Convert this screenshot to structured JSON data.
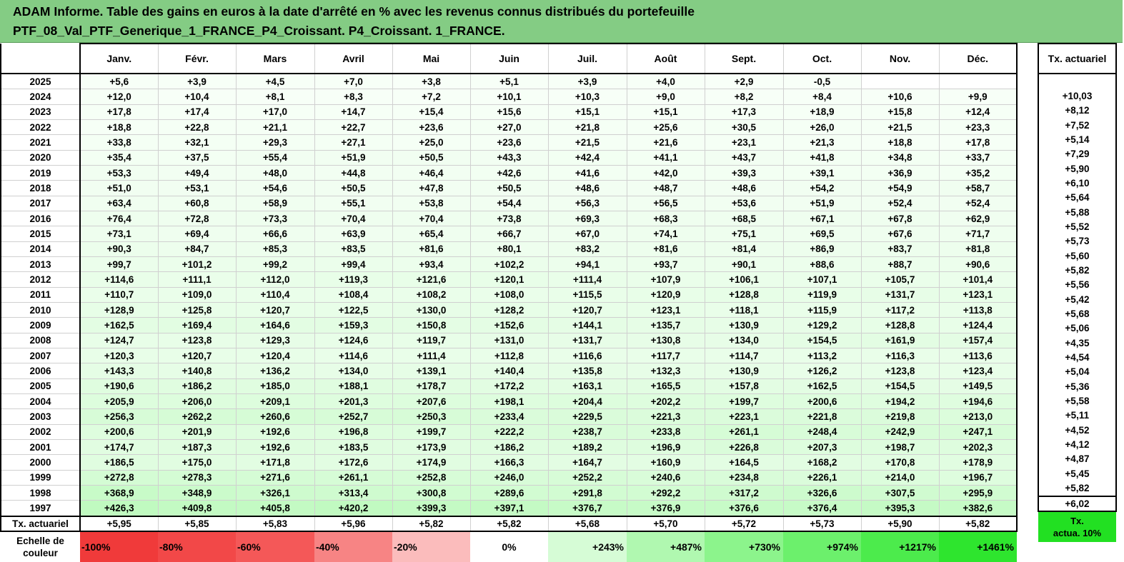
{
  "title": {
    "line1": "ADAM Informe. Table des gains en euros à la date d'arrêté en % avec les revenus connus distribués du portefeuille",
    "line2": "PTF_08_Val_PTF_Generique_1_FRANCE_P4_Croissant. P4_Croissant. 1_FRANCE."
  },
  "months": [
    "Janv.",
    "Févr.",
    "Mars",
    "Avril",
    "Mai",
    "Juin",
    "Juil.",
    "Août",
    "Sept.",
    "Oct.",
    "Nov.",
    "Déc."
  ],
  "side_header": "Tx. actuariel",
  "rows": [
    {
      "year": "2025",
      "values": [
        "+5,6",
        "+3,9",
        "+4,5",
        "+7,0",
        "+3,8",
        "+5,1",
        "+3,9",
        "+4,0",
        "+2,9",
        "-0,5",
        "",
        ""
      ],
      "tx": ""
    },
    {
      "year": "2024",
      "values": [
        "+12,0",
        "+10,4",
        "+8,1",
        "+8,3",
        "+7,2",
        "+10,1",
        "+10,3",
        "+9,0",
        "+8,2",
        "+8,4",
        "+10,6",
        "+9,9"
      ],
      "tx": "+10,03"
    },
    {
      "year": "2023",
      "values": [
        "+17,8",
        "+17,4",
        "+17,0",
        "+14,7",
        "+15,4",
        "+15,6",
        "+15,1",
        "+15,1",
        "+17,3",
        "+18,9",
        "+15,8",
        "+12,4"
      ],
      "tx": "+8,12"
    },
    {
      "year": "2022",
      "values": [
        "+18,8",
        "+22,8",
        "+21,1",
        "+22,7",
        "+23,6",
        "+27,0",
        "+21,8",
        "+25,6",
        "+30,5",
        "+26,0",
        "+21,5",
        "+23,3"
      ],
      "tx": "+7,52"
    },
    {
      "year": "2021",
      "values": [
        "+33,8",
        "+32,1",
        "+29,3",
        "+27,1",
        "+25,0",
        "+23,6",
        "+21,5",
        "+21,6",
        "+23,1",
        "+21,3",
        "+18,8",
        "+17,8"
      ],
      "tx": "+5,14"
    },
    {
      "year": "2020",
      "values": [
        "+35,4",
        "+37,5",
        "+55,4",
        "+51,9",
        "+50,5",
        "+43,3",
        "+42,4",
        "+41,1",
        "+43,7",
        "+41,8",
        "+34,8",
        "+33,7"
      ],
      "tx": "+7,29"
    },
    {
      "year": "2019",
      "values": [
        "+53,3",
        "+49,4",
        "+48,0",
        "+44,8",
        "+46,4",
        "+42,6",
        "+41,6",
        "+42,0",
        "+39,3",
        "+39,1",
        "+36,9",
        "+35,2"
      ],
      "tx": "+5,90"
    },
    {
      "year": "2018",
      "values": [
        "+51,0",
        "+53,1",
        "+54,6",
        "+50,5",
        "+47,8",
        "+50,5",
        "+48,6",
        "+48,7",
        "+48,6",
        "+54,2",
        "+54,9",
        "+58,7"
      ],
      "tx": "+6,10"
    },
    {
      "year": "2017",
      "values": [
        "+63,4",
        "+60,8",
        "+58,9",
        "+55,1",
        "+53,8",
        "+54,4",
        "+56,3",
        "+56,5",
        "+53,6",
        "+51,9",
        "+52,4",
        "+52,4"
      ],
      "tx": "+5,64"
    },
    {
      "year": "2016",
      "values": [
        "+76,4",
        "+72,8",
        "+73,3",
        "+70,4",
        "+70,4",
        "+73,8",
        "+69,3",
        "+68,3",
        "+68,5",
        "+67,1",
        "+67,8",
        "+62,9"
      ],
      "tx": "+5,88"
    },
    {
      "year": "2015",
      "values": [
        "+73,1",
        "+69,4",
        "+66,6",
        "+63,9",
        "+65,4",
        "+66,7",
        "+67,0",
        "+74,1",
        "+75,1",
        "+69,5",
        "+67,6",
        "+71,7"
      ],
      "tx": "+5,52"
    },
    {
      "year": "2014",
      "values": [
        "+90,3",
        "+84,7",
        "+85,3",
        "+83,5",
        "+81,6",
        "+80,1",
        "+83,2",
        "+81,6",
        "+81,4",
        "+86,9",
        "+83,7",
        "+81,8"
      ],
      "tx": "+5,73"
    },
    {
      "year": "2013",
      "values": [
        "+99,7",
        "+101,2",
        "+99,2",
        "+99,4",
        "+93,4",
        "+102,2",
        "+94,1",
        "+93,7",
        "+90,1",
        "+88,6",
        "+88,7",
        "+90,6"
      ],
      "tx": "+5,60"
    },
    {
      "year": "2012",
      "values": [
        "+114,6",
        "+111,1",
        "+112,0",
        "+119,3",
        "+121,6",
        "+120,1",
        "+111,4",
        "+107,9",
        "+106,1",
        "+107,1",
        "+105,7",
        "+101,4"
      ],
      "tx": "+5,82"
    },
    {
      "year": "2011",
      "values": [
        "+110,7",
        "+109,0",
        "+110,4",
        "+108,4",
        "+108,2",
        "+108,0",
        "+115,5",
        "+120,9",
        "+128,8",
        "+119,9",
        "+131,7",
        "+123,1"
      ],
      "tx": "+5,56"
    },
    {
      "year": "2010",
      "values": [
        "+128,9",
        "+125,8",
        "+120,7",
        "+122,5",
        "+130,0",
        "+128,2",
        "+120,7",
        "+123,1",
        "+118,1",
        "+115,9",
        "+117,2",
        "+113,8"
      ],
      "tx": "+5,42"
    },
    {
      "year": "2009",
      "values": [
        "+162,5",
        "+169,4",
        "+164,6",
        "+159,3",
        "+150,8",
        "+152,6",
        "+144,1",
        "+135,7",
        "+130,9",
        "+129,2",
        "+128,8",
        "+124,4"
      ],
      "tx": "+5,68"
    },
    {
      "year": "2008",
      "values": [
        "+124,7",
        "+123,8",
        "+129,3",
        "+124,6",
        "+119,7",
        "+131,0",
        "+131,7",
        "+130,8",
        "+134,0",
        "+154,5",
        "+161,9",
        "+157,4"
      ],
      "tx": "+5,06"
    },
    {
      "year": "2007",
      "values": [
        "+120,3",
        "+120,7",
        "+120,4",
        "+114,6",
        "+111,4",
        "+112,8",
        "+116,6",
        "+117,7",
        "+114,7",
        "+113,2",
        "+116,3",
        "+113,6"
      ],
      "tx": "+4,35"
    },
    {
      "year": "2006",
      "values": [
        "+143,3",
        "+140,8",
        "+136,2",
        "+134,0",
        "+139,1",
        "+140,4",
        "+135,8",
        "+132,3",
        "+130,9",
        "+126,2",
        "+123,8",
        "+123,4"
      ],
      "tx": "+4,54"
    },
    {
      "year": "2005",
      "values": [
        "+190,6",
        "+186,2",
        "+185,0",
        "+188,1",
        "+178,7",
        "+172,2",
        "+163,1",
        "+165,5",
        "+157,8",
        "+162,5",
        "+154,5",
        "+149,5"
      ],
      "tx": "+5,04"
    },
    {
      "year": "2004",
      "values": [
        "+205,9",
        "+206,0",
        "+209,1",
        "+201,3",
        "+207,6",
        "+198,1",
        "+204,4",
        "+202,2",
        "+199,7",
        "+200,6",
        "+194,2",
        "+194,6"
      ],
      "tx": "+5,36"
    },
    {
      "year": "2003",
      "values": [
        "+256,3",
        "+262,2",
        "+260,6",
        "+252,7",
        "+250,3",
        "+233,4",
        "+229,5",
        "+221,3",
        "+223,1",
        "+221,8",
        "+219,8",
        "+213,0"
      ],
      "tx": "+5,58"
    },
    {
      "year": "2002",
      "values": [
        "+200,6",
        "+201,9",
        "+192,6",
        "+196,8",
        "+199,7",
        "+222,2",
        "+238,7",
        "+233,8",
        "+261,1",
        "+248,4",
        "+242,9",
        "+247,1"
      ],
      "tx": "+5,11"
    },
    {
      "year": "2001",
      "values": [
        "+174,7",
        "+187,3",
        "+192,6",
        "+183,5",
        "+173,9",
        "+186,2",
        "+189,2",
        "+196,9",
        "+226,8",
        "+207,3",
        "+198,7",
        "+202,3"
      ],
      "tx": "+4,52"
    },
    {
      "year": "2000",
      "values": [
        "+186,5",
        "+175,0",
        "+171,8",
        "+172,6",
        "+174,9",
        "+166,3",
        "+164,7",
        "+160,9",
        "+164,5",
        "+168,2",
        "+170,8",
        "+178,9"
      ],
      "tx": "+4,12"
    },
    {
      "year": "1999",
      "values": [
        "+272,8",
        "+278,3",
        "+271,6",
        "+261,1",
        "+252,8",
        "+246,0",
        "+252,2",
        "+240,6",
        "+234,8",
        "+226,1",
        "+214,0",
        "+196,7"
      ],
      "tx": "+4,87"
    },
    {
      "year": "1998",
      "values": [
        "+368,9",
        "+348,9",
        "+326,1",
        "+313,4",
        "+300,8",
        "+289,6",
        "+291,8",
        "+292,2",
        "+317,2",
        "+326,6",
        "+307,5",
        "+295,9"
      ],
      "tx": "+5,45"
    },
    {
      "year": "1997",
      "values": [
        "+426,3",
        "+409,8",
        "+405,8",
        "+420,2",
        "+399,3",
        "+397,1",
        "+376,7",
        "+376,9",
        "+376,6",
        "+376,4",
        "+395,3",
        "+382,6"
      ],
      "tx": "+5,82"
    }
  ],
  "tx_row": {
    "label": "Tx. actuariel",
    "values": [
      "+5,95",
      "+5,85",
      "+5,83",
      "+5,96",
      "+5,82",
      "+5,82",
      "+5,68",
      "+5,70",
      "+5,72",
      "+5,73",
      "+5,90",
      "+5,82"
    ],
    "total": "+6,02"
  },
  "scale": {
    "label_line1": "Echelle de",
    "label_line2": "couleur",
    "items": [
      {
        "text": "-100%",
        "color": "#f03a3a"
      },
      {
        "text": "-80%",
        "color": "#f24848"
      },
      {
        "text": "-60%",
        "color": "#f45858"
      },
      {
        "text": "-40%",
        "color": "#f78484"
      },
      {
        "text": "-20%",
        "color": "#fbbcbc"
      },
      {
        "text": "0%",
        "color": "#ffffff"
      },
      {
        "text": "+243%",
        "color": "#d6fcd6"
      },
      {
        "text": "+487%",
        "color": "#b0f8b0"
      },
      {
        "text": "+730%",
        "color": "#8cf48c"
      },
      {
        "text": "+974%",
        "color": "#6cf06c"
      },
      {
        "text": "+1217%",
        "color": "#4ceb4c"
      },
      {
        "text": "+1461%",
        "color": "#2ee52e"
      }
    ],
    "side_line1": "Tx.",
    "side_line2": "actua. 10%",
    "side_color": "#22e022"
  },
  "colors": {
    "title_bg": "#84cc84"
  }
}
